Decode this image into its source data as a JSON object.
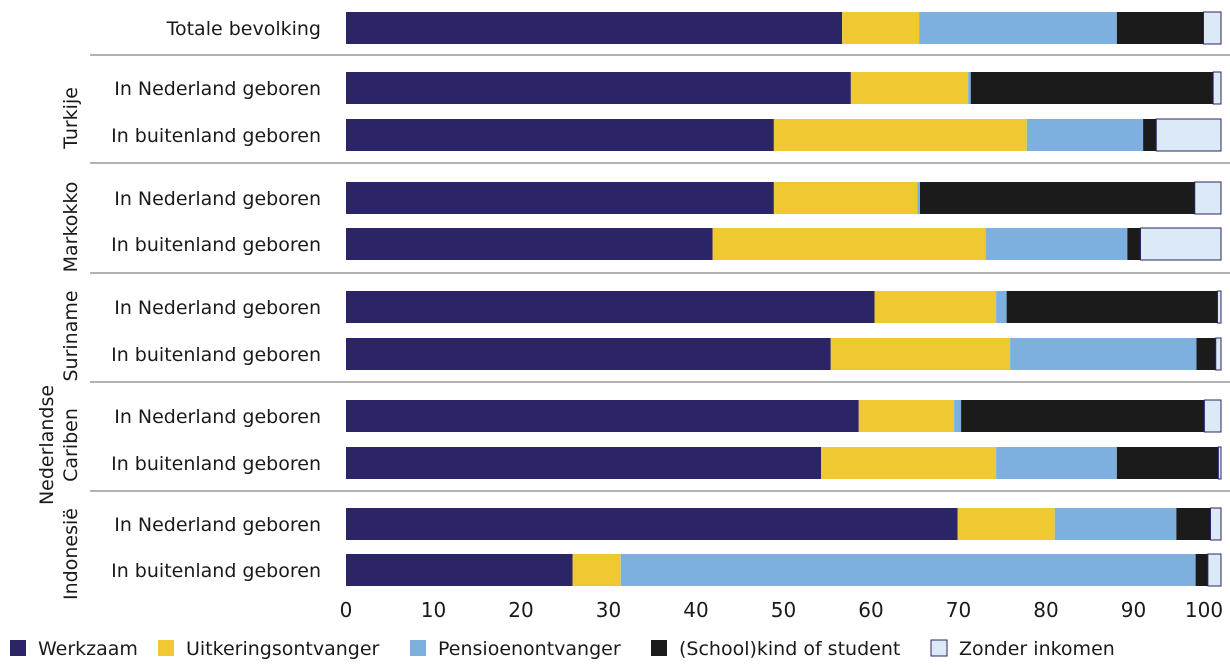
{
  "chart_data": {
    "type": "bar",
    "orientation": "horizontal",
    "stacked": true,
    "xlim": [
      0,
      100
    ],
    "xticks": [
      "0",
      "10",
      "20",
      "30",
      "40",
      "50",
      "60",
      "70",
      "80",
      "90",
      "100"
    ],
    "legend_position": "bottom",
    "series": [
      {
        "name": "Werkzaam",
        "color": "#2b2466"
      },
      {
        "name": "Uitkeringsontvanger",
        "color": "#f0c932"
      },
      {
        "name": "Pensioenontvanger",
        "color": "#7eb0df"
      },
      {
        "name": "(School)kind of student",
        "color": "#1b1b1b"
      },
      {
        "name": "Zonder inkomen",
        "color": "#dce9f6"
      }
    ],
    "groups": [
      {
        "name": "",
        "rows": [
          {
            "label": "Totale bevolking",
            "values": [
              56.7,
              8.8,
              22.6,
              9.9,
              2.0
            ]
          }
        ]
      },
      {
        "name": "Turkije",
        "rows": [
          {
            "label": "In Nederland geboren",
            "values": [
              57.7,
              13.4,
              0.3,
              27.7,
              2.9
            ]
          },
          {
            "label": "In buitenland geboren",
            "values": [
              48.9,
              28.9,
              13.3,
              1.5,
              7.4
            ]
          }
        ]
      },
      {
        "name": "Markokko",
        "rows": [
          {
            "label": "In Nederland geboren",
            "values": [
              48.9,
              16.4,
              0.3,
              31.4,
              3.0
            ]
          },
          {
            "label": "In buitenland geboren",
            "values": [
              41.9,
              31.2,
              16.2,
              1.5,
              9.2
            ]
          }
        ]
      },
      {
        "name": "Suriname",
        "rows": [
          {
            "label": "In Nederland geboren",
            "values": [
              60.4,
              13.9,
              1.2,
              24.1,
              2.0
            ]
          },
          {
            "label": "In buitenland geboren",
            "values": [
              55.4,
              20.5,
              21.3,
              2.2,
              2.6
            ]
          }
        ]
      },
      {
        "name": "Nederlandse Cariben",
        "rows": [
          {
            "label": "In Nederland geboren",
            "values": [
              58.6,
              10.9,
              0.8,
              27.8,
              1.9
            ]
          },
          {
            "label": "In buitenland geboren",
            "values": [
              54.3,
              20.0,
              13.8,
              11.6,
              2.3
            ]
          }
        ]
      },
      {
        "name": "Indonesië",
        "rows": [
          {
            "label": "In Nederland geboren",
            "values": [
              69.9,
              11.1,
              13.9,
              3.9,
              3.2
            ]
          },
          {
            "label": "In buitenland geboren",
            "values": [
              25.9,
              5.5,
              65.7,
              1.4,
              3.2
            ]
          }
        ]
      }
    ]
  }
}
